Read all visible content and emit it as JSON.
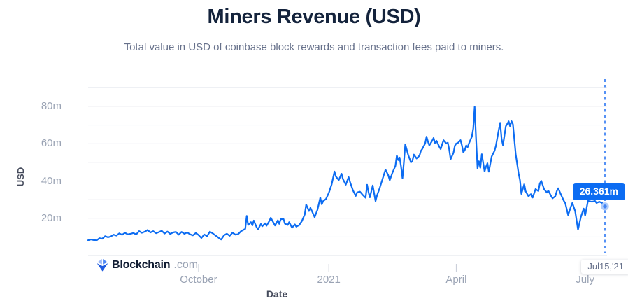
{
  "header": {
    "title": "Miners Revenue (USD)",
    "subtitle": "Total value in USD of coinbase block rewards and transaction fees paid to miners."
  },
  "branding": {
    "logo_bold": "Blockchain",
    "logo_suffix": ".com"
  },
  "chart_data": {
    "type": "line",
    "title": "Miners Revenue (USD)",
    "xlabel": "Date",
    "ylabel": "USD",
    "x_unit": "days since 2020-07-15",
    "x_range": [
      0,
      365
    ],
    "y_range": [
      0,
      90
    ],
    "y_unit": "millions USD",
    "grid_step": 10,
    "grid_on": true,
    "line_color": "#0c6cf2",
    "grid_color": "#eceef2",
    "baseline_color": "#dfe3e9",
    "tick_color": "#c6ccd6",
    "y_ticks": [
      {
        "value": 20,
        "label": "20m"
      },
      {
        "value": 40,
        "label": "40m"
      },
      {
        "value": 60,
        "label": "60m"
      },
      {
        "value": 80,
        "label": "80m"
      }
    ],
    "x_ticks": [
      {
        "day": 78,
        "label": "October"
      },
      {
        "day": 170,
        "label": "2021"
      },
      {
        "day": 260,
        "label": "April"
      },
      {
        "day": 351,
        "label": "July"
      }
    ],
    "series": [
      {
        "name": "Miners Revenue (USD)",
        "points": [
          [
            0,
            8.2
          ],
          [
            2,
            8.6
          ],
          [
            4,
            8.3
          ],
          [
            6,
            8.1
          ],
          [
            8,
            9.3
          ],
          [
            10,
            9.0
          ],
          [
            12,
            10.4
          ],
          [
            14,
            9.8
          ],
          [
            16,
            10.2
          ],
          [
            18,
            11.2
          ],
          [
            20,
            10.7
          ],
          [
            22,
            11.9
          ],
          [
            24,
            11.1
          ],
          [
            26,
            12.2
          ],
          [
            28,
            11.4
          ],
          [
            30,
            11.7
          ],
          [
            32,
            12.1
          ],
          [
            34,
            11.3
          ],
          [
            36,
            13.1
          ],
          [
            38,
            12.2
          ],
          [
            40,
            12.8
          ],
          [
            42,
            13.7
          ],
          [
            44,
            12.4
          ],
          [
            46,
            13.1
          ],
          [
            48,
            12.0
          ],
          [
            50,
            12.6
          ],
          [
            52,
            13.3
          ],
          [
            54,
            11.8
          ],
          [
            56,
            12.9
          ],
          [
            58,
            11.6
          ],
          [
            60,
            12.4
          ],
          [
            62,
            12.7
          ],
          [
            64,
            11.2
          ],
          [
            66,
            12.7
          ],
          [
            68,
            11.7
          ],
          [
            70,
            12.4
          ],
          [
            72,
            11.4
          ],
          [
            74,
            10.8
          ],
          [
            76,
            12.1
          ],
          [
            78,
            11.0
          ],
          [
            80,
            9.4
          ],
          [
            82,
            11.3
          ],
          [
            84,
            10.4
          ],
          [
            86,
            12.8
          ],
          [
            88,
            11.9
          ],
          [
            89,
            11.3
          ],
          [
            91,
            10.2
          ],
          [
            93,
            9.0
          ],
          [
            94,
            8.6
          ],
          [
            96,
            10.9
          ],
          [
            98,
            11.7
          ],
          [
            100,
            10.6
          ],
          [
            102,
            12.3
          ],
          [
            104,
            11.2
          ],
          [
            106,
            11.5
          ],
          [
            108,
            13.1
          ],
          [
            110,
            13.9
          ],
          [
            111,
            14.3
          ],
          [
            112,
            21.3
          ],
          [
            113,
            16.4
          ],
          [
            115,
            17.9
          ],
          [
            116,
            16.2
          ],
          [
            117,
            18.8
          ],
          [
            119,
            15.2
          ],
          [
            120,
            14.1
          ],
          [
            122,
            16.9
          ],
          [
            123,
            15.7
          ],
          [
            125,
            17.3
          ],
          [
            126,
            16.0
          ],
          [
            128,
            18.6
          ],
          [
            129,
            20.3
          ],
          [
            131,
            17.5
          ],
          [
            132,
            16.1
          ],
          [
            134,
            18.9
          ],
          [
            135,
            17.0
          ],
          [
            136,
            19.5
          ],
          [
            138,
            19.6
          ],
          [
            139,
            17.1
          ],
          [
            141,
            16.4
          ],
          [
            142,
            17.9
          ],
          [
            144,
            14.9
          ],
          [
            146,
            16.7
          ],
          [
            147,
            15.5
          ],
          [
            149,
            16.3
          ],
          [
            151,
            18.5
          ],
          [
            153,
            22.1
          ],
          [
            154,
            27.4
          ],
          [
            156,
            23.9
          ],
          [
            157,
            25.6
          ],
          [
            159,
            22.3
          ],
          [
            160,
            20.6
          ],
          [
            162,
            24.6
          ],
          [
            164,
            31.1
          ],
          [
            165,
            27.5
          ],
          [
            166,
            29.2
          ],
          [
            168,
            30.3
          ],
          [
            170,
            33.6
          ],
          [
            172,
            38.1
          ],
          [
            174,
            45.1
          ],
          [
            175,
            42.4
          ],
          [
            177,
            40.5
          ],
          [
            179,
            43.9
          ],
          [
            180,
            41.0
          ],
          [
            182,
            38.0
          ],
          [
            184,
            42.1
          ],
          [
            185,
            39.4
          ],
          [
            187,
            35.1
          ],
          [
            189,
            32.0
          ],
          [
            190,
            33.9
          ],
          [
            192,
            34.3
          ],
          [
            194,
            32.5
          ],
          [
            196,
            31.0
          ],
          [
            197,
            38.0
          ],
          [
            198,
            34.1
          ],
          [
            199,
            31.2
          ],
          [
            201,
            37.6
          ],
          [
            203,
            29.2
          ],
          [
            204,
            32.1
          ],
          [
            206,
            36.4
          ],
          [
            208,
            41.2
          ],
          [
            210,
            46.1
          ],
          [
            212,
            43.1
          ],
          [
            213,
            40.4
          ],
          [
            215,
            44.6
          ],
          [
            217,
            48.1
          ],
          [
            218,
            53.7
          ],
          [
            219,
            51.2
          ],
          [
            220,
            52.6
          ],
          [
            221,
            48.0
          ],
          [
            222,
            41.5
          ],
          [
            223,
            50.0
          ],
          [
            224,
            59.7
          ],
          [
            226,
            54.1
          ],
          [
            228,
            50.0
          ],
          [
            229,
            50.6
          ],
          [
            230,
            54.2
          ],
          [
            232,
            52.1
          ],
          [
            234,
            53.6
          ],
          [
            235,
            56.1
          ],
          [
            236,
            57.2
          ],
          [
            238,
            60.1
          ],
          [
            239,
            63.8
          ],
          [
            240,
            61.2
          ],
          [
            241,
            59.1
          ],
          [
            243,
            61.6
          ],
          [
            244,
            63.1
          ],
          [
            245,
            60.4
          ],
          [
            246,
            61.6
          ],
          [
            248,
            58.4
          ],
          [
            249,
            57.1
          ],
          [
            250,
            59.6
          ],
          [
            251,
            61.9
          ],
          [
            253,
            60.1
          ],
          [
            254,
            60.6
          ],
          [
            255,
            57.0
          ],
          [
            256,
            51.7
          ],
          [
            258,
            55.1
          ],
          [
            259,
            58.9
          ],
          [
            260,
            60.1
          ],
          [
            261,
            60.3
          ],
          [
            263,
            61.9
          ],
          [
            264,
            59.1
          ],
          [
            265,
            55.4
          ],
          [
            266,
            56.6
          ],
          [
            267,
            59.1
          ],
          [
            268,
            58.1
          ],
          [
            269,
            60.2
          ],
          [
            271,
            63.8
          ],
          [
            272,
            68.2
          ],
          [
            273,
            79.9
          ],
          [
            274,
            62.1
          ],
          [
            275,
            46.8
          ],
          [
            276,
            50.6
          ],
          [
            277,
            47.1
          ],
          [
            278,
            54.4
          ],
          [
            280,
            45.1
          ],
          [
            281,
            47.6
          ],
          [
            282,
            49.5
          ],
          [
            283,
            45.0
          ],
          [
            285,
            53.1
          ],
          [
            287,
            56.2
          ],
          [
            288,
            58.9
          ],
          [
            290,
            67.5
          ],
          [
            291,
            71.2
          ],
          [
            292,
            62.6
          ],
          [
            293,
            59.2
          ],
          [
            295,
            69.4
          ],
          [
            296,
            70.6
          ],
          [
            297,
            72.0
          ],
          [
            298,
            69.4
          ],
          [
            299,
            72.1
          ],
          [
            300,
            70.5
          ],
          [
            302,
            54.4
          ],
          [
            304,
            44.2
          ],
          [
            305,
            40.5
          ],
          [
            306,
            33.1
          ],
          [
            308,
            38.3
          ],
          [
            309,
            34.5
          ],
          [
            311,
            31.8
          ],
          [
            313,
            33.1
          ],
          [
            314,
            31.1
          ],
          [
            316,
            35.7
          ],
          [
            318,
            34.6
          ],
          [
            319,
            38.7
          ],
          [
            320,
            40.1
          ],
          [
            322,
            35.7
          ],
          [
            324,
            33.8
          ],
          [
            325,
            34.9
          ],
          [
            327,
            31.9
          ],
          [
            328,
            30.7
          ],
          [
            330,
            31.9
          ],
          [
            331,
            34.6
          ],
          [
            332,
            36.1
          ],
          [
            334,
            32.6
          ],
          [
            336,
            29.3
          ],
          [
            337,
            28.1
          ],
          [
            339,
            21.7
          ],
          [
            341,
            26.3
          ],
          [
            342,
            28.2
          ],
          [
            344,
            23.7
          ],
          [
            345,
            18.8
          ],
          [
            346,
            13.9
          ],
          [
            348,
            20.7
          ],
          [
            350,
            25.2
          ],
          [
            351,
            21.4
          ],
          [
            353,
            29.3
          ],
          [
            355,
            29.0
          ],
          [
            356,
            28.9
          ],
          [
            358,
            29.3
          ],
          [
            359,
            28.2
          ],
          [
            361,
            28.9
          ],
          [
            363,
            28.2
          ],
          [
            365,
            26.361
          ]
        ]
      }
    ],
    "crosshair": {
      "day": 365,
      "value": 26.361,
      "value_label": "26.361m",
      "date_label": "Jul15,'21",
      "color": "#5591f5"
    },
    "legend_position": "none"
  }
}
